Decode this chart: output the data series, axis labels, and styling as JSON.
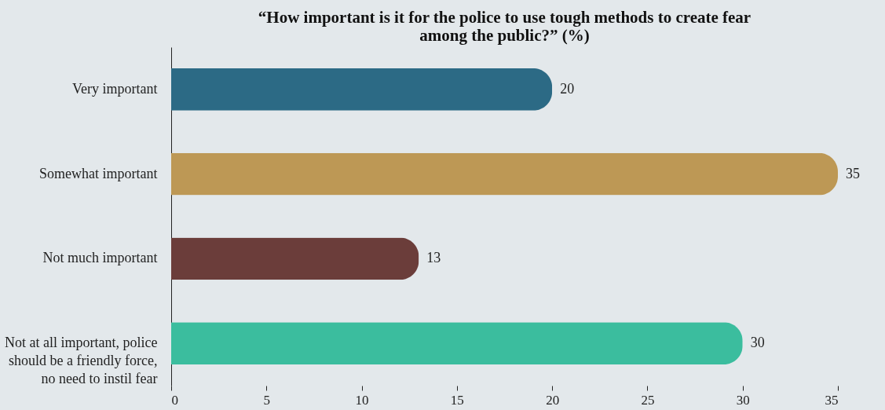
{
  "chart_data": {
    "type": "bar",
    "orientation": "horizontal",
    "title": "“How important is it for the police to use tough methods to create fear among the public?” (%)",
    "categories": [
      "Very important",
      "Somewhat important",
      "Not much important",
      "Not at all important, police should be a friendly force, no need to instil fear"
    ],
    "values": [
      20,
      35,
      13,
      30
    ],
    "colors": [
      "#2c6a85",
      "#bd9855",
      "#6b3d3a",
      "#3bbd9e"
    ],
    "xlim": [
      0,
      35
    ],
    "xticks": [
      0,
      5,
      10,
      15,
      20,
      25,
      30,
      35
    ],
    "data_labels": true,
    "grid": false
  }
}
